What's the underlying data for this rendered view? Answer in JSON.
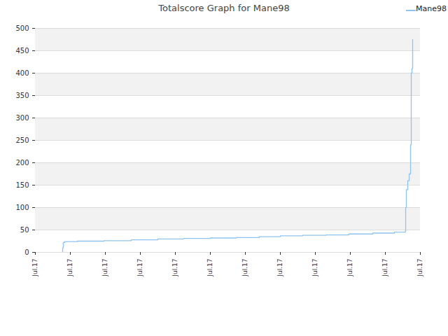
{
  "chart_data": {
    "type": "line",
    "title": "Totalscore Graph for Mane98",
    "x": [
      0.76,
      0.78,
      0.8,
      0.84,
      1.2,
      1.96,
      2.74,
      3.5,
      4.24,
      5.0,
      5.74,
      6.4,
      7.0,
      7.64,
      8.3,
      8.96,
      9.64,
      10.26,
      10.56,
      10.58,
      10.6,
      10.64,
      10.68,
      10.72,
      10.74,
      10.76,
      10.78
    ],
    "series": [
      {
        "name": "Mane98",
        "color": "#90c3f0",
        "line_style": "step",
        "values": [
          0,
          10,
          22,
          24,
          25,
          26,
          28,
          30,
          31,
          32,
          33,
          35,
          37,
          38,
          39,
          41,
          43,
          45,
          46,
          100,
          140,
          160,
          175,
          240,
          400,
          410,
          475
        ]
      }
    ],
    "xlim": [
      0,
      11
    ],
    "xticks": [
      {
        "value": 0,
        "label": "Jul.17"
      },
      {
        "value": 1,
        "label": "Jul.17"
      },
      {
        "value": 2,
        "label": "Jul.17"
      },
      {
        "value": 3,
        "label": "Jul.17"
      },
      {
        "value": 4,
        "label": "Jul.17"
      },
      {
        "value": 5,
        "label": "Jul.17"
      },
      {
        "value": 6,
        "label": "Jul.17"
      },
      {
        "value": 7,
        "label": "Jul.17"
      },
      {
        "value": 8,
        "label": "Jul.17"
      },
      {
        "value": 9,
        "label": "Jul.17"
      },
      {
        "value": 10,
        "label": "Jul.17"
      },
      {
        "value": 11,
        "label": "Jul.17"
      }
    ],
    "ylim": [
      0,
      500
    ],
    "yticks": [
      0,
      50,
      100,
      150,
      200,
      250,
      300,
      350,
      400,
      450,
      500
    ],
    "grid": true,
    "legend": "top-right"
  }
}
